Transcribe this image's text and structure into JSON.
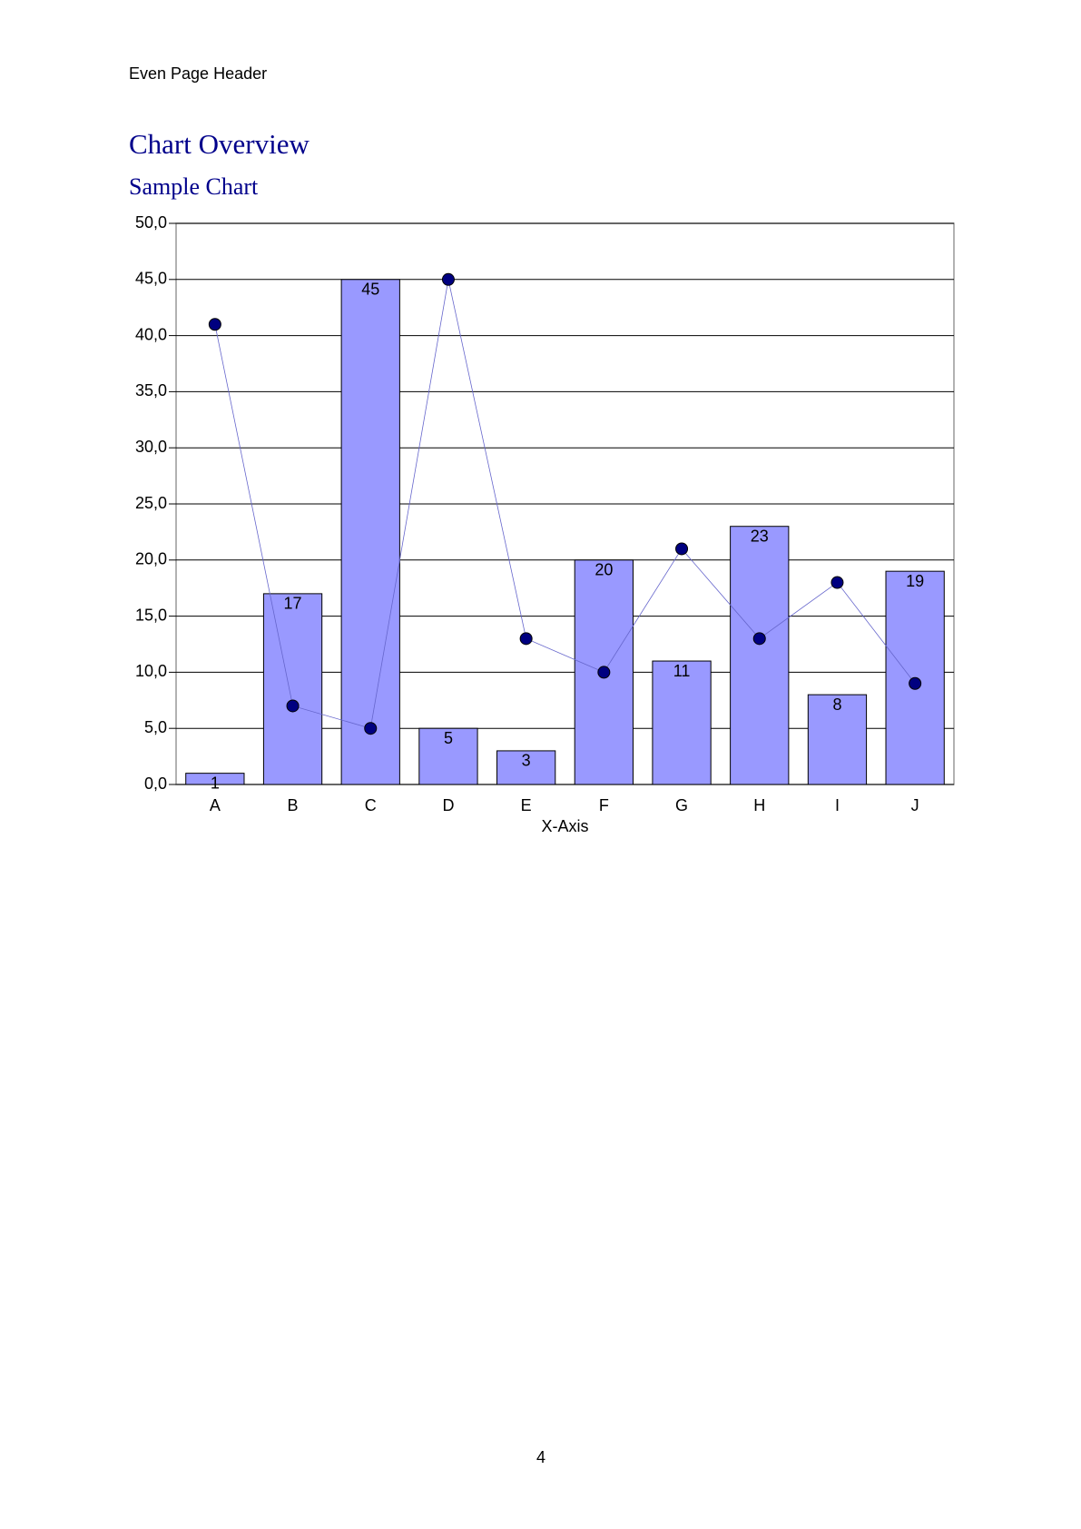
{
  "header": "Even Page Header",
  "title": "Chart Overview",
  "subtitle": "Sample Chart",
  "page_number": "4",
  "chart_data": {
    "type": "bar",
    "categories": [
      "A",
      "B",
      "C",
      "D",
      "E",
      "F",
      "G",
      "H",
      "I",
      "J"
    ],
    "x_label": "X-Axis",
    "series": [
      {
        "type": "bar",
        "color": "#9999ff",
        "values": [
          1,
          17,
          45,
          5,
          3,
          20,
          11,
          23,
          8,
          19
        ]
      },
      {
        "type": "line",
        "color": "#000080",
        "values": [
          41,
          7,
          5,
          45,
          13,
          10,
          21,
          13,
          18,
          9
        ]
      }
    ],
    "ylim": [
      0,
      50
    ],
    "yticks": [
      {
        "value": 0,
        "label": "0,0"
      },
      {
        "value": 5,
        "label": "5,0"
      },
      {
        "value": 10,
        "label": "10,0"
      },
      {
        "value": 15,
        "label": "15,0"
      },
      {
        "value": 20,
        "label": "20,0"
      },
      {
        "value": 25,
        "label": "25,0"
      },
      {
        "value": 30,
        "label": "30,0"
      },
      {
        "value": 35,
        "label": "35,0"
      },
      {
        "value": 40,
        "label": "40,0"
      },
      {
        "value": 45,
        "label": "45,0"
      },
      {
        "value": 50,
        "label": "50,0"
      }
    ],
    "grid": true
  }
}
